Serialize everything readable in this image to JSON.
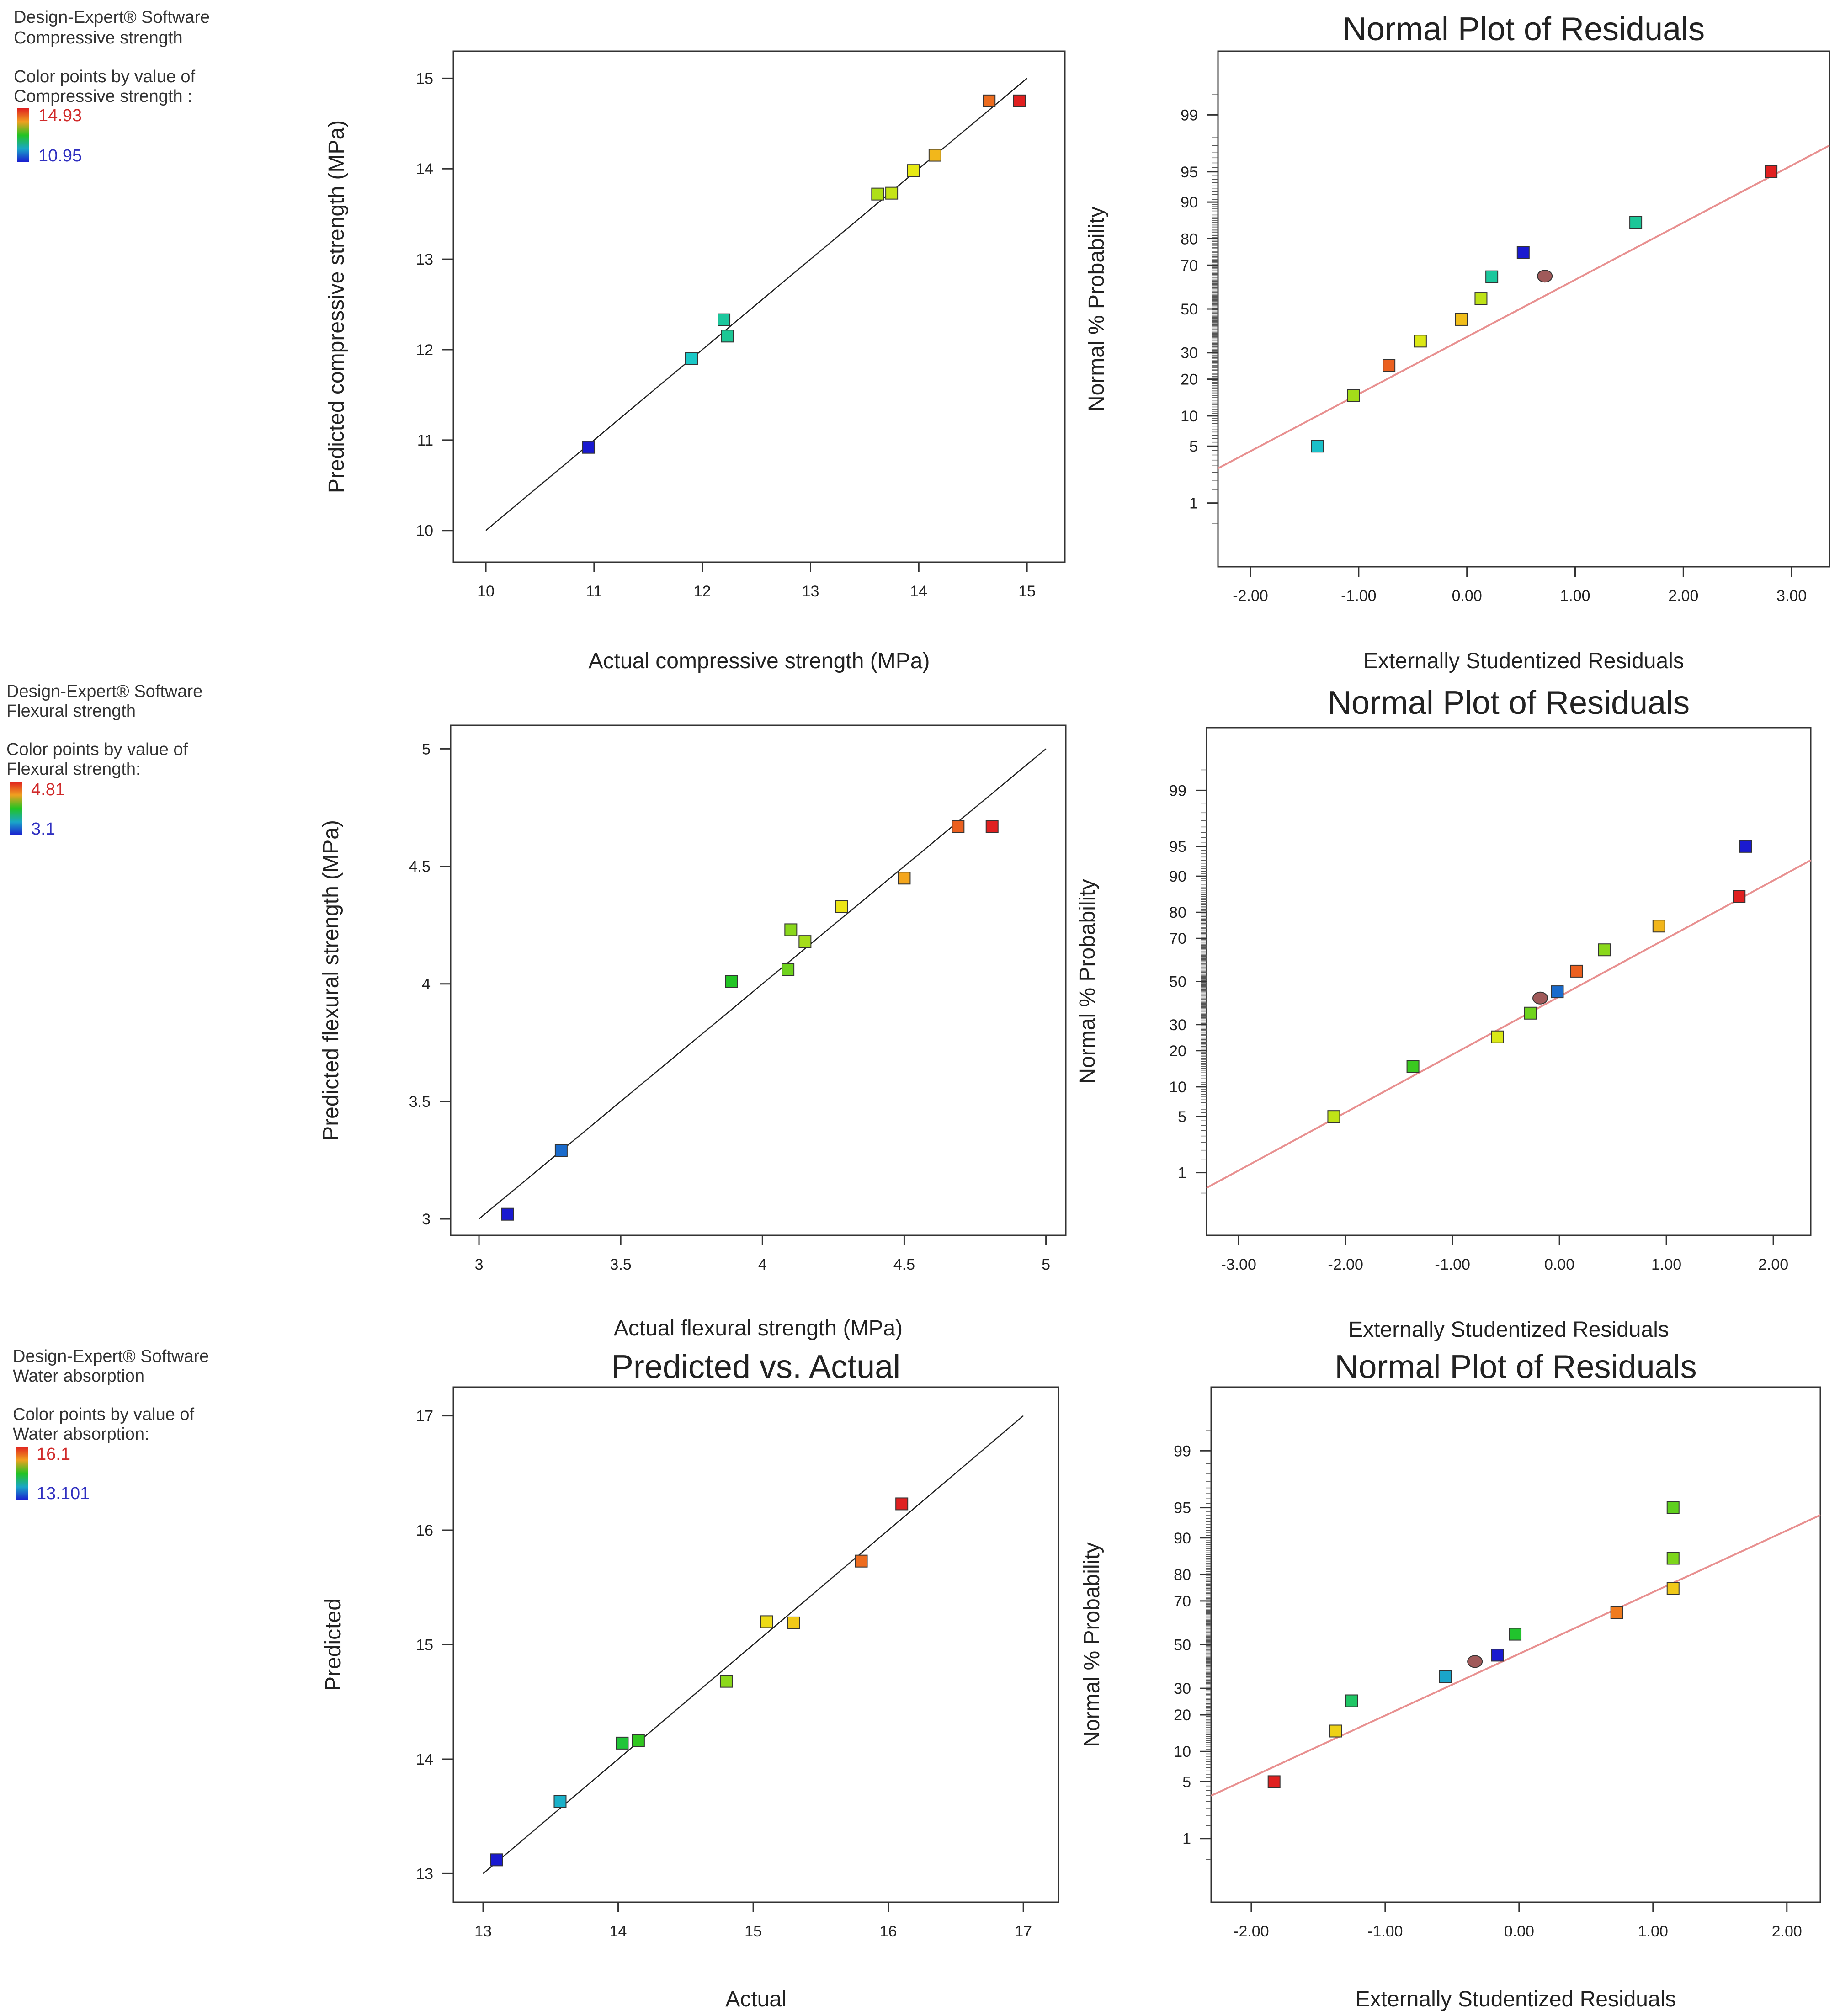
{
  "panels": [
    {
      "legend": {
        "software": "Design-Expert® Software",
        "response": "Compressive strength",
        "color_line1": "Color points by value of",
        "color_line2": "Compressive strength :",
        "high": "14.93",
        "low": "10.95"
      }
    },
    {
      "legend": {
        "software": "Design-Expert® Software",
        "response": "Flexural strength",
        "color_line1": "Color points by value of",
        "color_line2": "Flexural strength:",
        "high": "4.81",
        "low": "3.1"
      }
    },
    {
      "legend": {
        "software": "Design-Expert® Software",
        "response": "Water absorption",
        "color_line1": "Color points by value of",
        "color_line2": "Water absorption:",
        "high": "16.1",
        "low": "13.101"
      }
    }
  ],
  "chart_data": [
    {
      "id": "pva-compressive",
      "type": "scatter",
      "title": "",
      "xlabel": "Actual compressive strength (MPa)",
      "ylabel": "Predicted compressive strength (MPa)",
      "xlim": [
        9.7,
        15.35
      ],
      "ylim": [
        9.65,
        15.3
      ],
      "xticks": [
        10,
        11,
        12,
        13,
        14,
        15
      ],
      "xtick_labels": [
        "10",
        "11",
        "12",
        "13",
        "14",
        "15"
      ],
      "yticks": [
        10,
        11,
        12,
        13,
        14,
        15
      ],
      "ytick_labels": [
        "10",
        "11",
        "12",
        "13",
        "14",
        "15"
      ],
      "reference_line": [
        [
          10,
          10
        ],
        [
          15,
          15
        ]
      ],
      "color_range": [
        10.95,
        14.93
      ],
      "points": [
        {
          "x": 10.95,
          "y": 10.92,
          "c": 10.95
        },
        {
          "x": 11.9,
          "y": 11.9,
          "c": 11.95
        },
        {
          "x": 12.2,
          "y": 12.33,
          "c": 12.2
        },
        {
          "x": 12.23,
          "y": 12.15,
          "c": 12.25
        },
        {
          "x": 13.62,
          "y": 13.72,
          "c": 13.55
        },
        {
          "x": 13.75,
          "y": 13.73,
          "c": 13.65
        },
        {
          "x": 13.95,
          "y": 13.98,
          "c": 13.8
        },
        {
          "x": 14.15,
          "y": 14.15,
          "c": 14.2
        },
        {
          "x": 14.65,
          "y": 14.75,
          "c": 14.6
        },
        {
          "x": 14.93,
          "y": 14.75,
          "c": 14.93
        }
      ]
    },
    {
      "id": "npp-compressive",
      "type": "scatter",
      "title": "Normal Plot of Residuals",
      "xlabel": "Externally Studentized Residuals",
      "ylabel": "Normal % Probability",
      "xlim": [
        -2.3,
        3.35
      ],
      "ylim": [
        0.1,
        99.9
      ],
      "xticks": [
        -2,
        -1,
        0,
        1,
        2,
        3
      ],
      "xtick_labels": [
        "-2.00",
        "-1.00",
        "0.00",
        "1.00",
        "2.00",
        "3.00"
      ],
      "yticks": [
        1,
        5,
        10,
        20,
        30,
        50,
        70,
        80,
        90,
        95,
        99
      ],
      "ytick_labels": [
        "1",
        "5",
        "10",
        "20",
        "30",
        "50",
        "70",
        "80",
        "90",
        "95",
        "99"
      ],
      "reference_line": [
        [
          -2.3,
          2.8
        ],
        [
          3.35,
          97.5
        ]
      ],
      "color_range": [
        10.95,
        14.93
      ],
      "points": [
        {
          "x": -1.38,
          "y": 5,
          "c": 11.9
        },
        {
          "x": -1.05,
          "y": 15,
          "c": 13.5
        },
        {
          "x": -0.72,
          "y": 25,
          "c": 14.65
        },
        {
          "x": -0.43,
          "y": 35,
          "c": 13.75
        },
        {
          "x": -0.05,
          "y": 45,
          "c": 14.15
        },
        {
          "x": 0.13,
          "y": 55,
          "c": 13.62
        },
        {
          "x": 0.23,
          "y": 65,
          "c": 12.2
        },
        {
          "x": 0.52,
          "y": 75,
          "c": 10.95
        },
        {
          "x": 0.72,
          "y": 65.3,
          "c": 0,
          "center": true
        },
        {
          "x": 1.56,
          "y": 85,
          "c": 12.23
        },
        {
          "x": 2.81,
          "y": 95,
          "c": 14.93
        }
      ]
    },
    {
      "id": "pva-flexural",
      "type": "scatter",
      "title": "",
      "xlabel": "Actual flexural strength (MPa)",
      "ylabel": "Predicted flexural strength (MPa)",
      "xlim": [
        2.9,
        5.07
      ],
      "ylim": [
        2.93,
        5.1
      ],
      "xticks": [
        3,
        3.5,
        4,
        4.5,
        5
      ],
      "xtick_labels": [
        "3",
        "3.5",
        "4",
        "4.5",
        "5"
      ],
      "yticks": [
        3,
        3.5,
        4,
        4.5,
        5
      ],
      "ytick_labels": [
        "3",
        "3.5",
        "4",
        "4.5",
        "5"
      ],
      "reference_line": [
        [
          3,
          3
        ],
        [
          5,
          5
        ]
      ],
      "color_range": [
        3.1,
        4.81
      ],
      "points": [
        {
          "x": 3.1,
          "y": 3.02,
          "c": 3.1
        },
        {
          "x": 3.29,
          "y": 3.29,
          "c": 3.3
        },
        {
          "x": 3.89,
          "y": 4.01,
          "c": 3.95
        },
        {
          "x": 4.09,
          "y": 4.06,
          "c": 4.1
        },
        {
          "x": 4.1,
          "y": 4.23,
          "c": 4.15
        },
        {
          "x": 4.15,
          "y": 4.18,
          "c": 4.2
        },
        {
          "x": 4.28,
          "y": 4.33,
          "c": 4.35
        },
        {
          "x": 4.5,
          "y": 4.45,
          "c": 4.55
        },
        {
          "x": 4.69,
          "y": 4.67,
          "c": 4.69
        },
        {
          "x": 4.81,
          "y": 4.67,
          "c": 4.81
        }
      ]
    },
    {
      "id": "npp-flexural",
      "type": "scatter",
      "title": "Normal Plot of Residuals",
      "xlabel": "Externally Studentized Residuals",
      "ylabel": "Normal % Probability",
      "xlim": [
        -3.3,
        2.35
      ],
      "ylim": [
        0.1,
        99.9
      ],
      "xticks": [
        -3,
        -2,
        -1,
        0,
        1,
        2
      ],
      "xtick_labels": [
        "-3.00",
        "-2.00",
        "-1.00",
        "0.00",
        "1.00",
        "2.00"
      ],
      "yticks": [
        1,
        5,
        10,
        20,
        30,
        50,
        70,
        80,
        90,
        95,
        99
      ],
      "ytick_labels": [
        "1",
        "5",
        "10",
        "20",
        "30",
        "50",
        "70",
        "80",
        "90",
        "95",
        "99"
      ],
      "reference_line": [
        [
          -3.3,
          0.6
        ],
        [
          2.35,
          93
        ]
      ],
      "color_range": [
        3.1,
        4.81
      ],
      "points": [
        {
          "x": -2.11,
          "y": 5,
          "c": 4.25
        },
        {
          "x": -1.37,
          "y": 15,
          "c": 4.0
        },
        {
          "x": -0.58,
          "y": 25,
          "c": 4.3
        },
        {
          "x": -0.27,
          "y": 35,
          "c": 4.1
        },
        {
          "x": -0.18,
          "y": 42,
          "c": 0,
          "center": true
        },
        {
          "x": -0.02,
          "y": 45,
          "c": 3.3
        },
        {
          "x": 0.16,
          "y": 55,
          "c": 4.69
        },
        {
          "x": 0.42,
          "y": 65,
          "c": 4.15
        },
        {
          "x": 0.93,
          "y": 75,
          "c": 4.5
        },
        {
          "x": 1.68,
          "y": 85,
          "c": 4.81
        },
        {
          "x": 1.74,
          "y": 95,
          "c": 3.1
        }
      ]
    },
    {
      "id": "pva-water",
      "type": "scatter",
      "title": "Predicted vs. Actual",
      "xlabel": "Actual",
      "ylabel": "Predicted",
      "xlim": [
        12.78,
        17.26
      ],
      "ylim": [
        12.75,
        17.25
      ],
      "xticks": [
        13,
        14,
        15,
        16,
        17
      ],
      "xtick_labels": [
        "13",
        "14",
        "15",
        "16",
        "17"
      ],
      "yticks": [
        13,
        14,
        15,
        16,
        17
      ],
      "ytick_labels": [
        "13",
        "14",
        "15",
        "16",
        "17"
      ],
      "reference_line": [
        [
          13,
          13
        ],
        [
          17,
          17
        ]
      ],
      "color_range": [
        13.101,
        16.1
      ],
      "points": [
        {
          "x": 13.1,
          "y": 13.12,
          "c": 13.101
        },
        {
          "x": 13.57,
          "y": 13.63,
          "c": 13.75
        },
        {
          "x": 14.03,
          "y": 14.14,
          "c": 14.5
        },
        {
          "x": 14.15,
          "y": 14.16,
          "c": 14.65
        },
        {
          "x": 14.8,
          "y": 14.68,
          "c": 14.95
        },
        {
          "x": 15.1,
          "y": 15.2,
          "c": 15.35
        },
        {
          "x": 15.3,
          "y": 15.19,
          "c": 15.45
        },
        {
          "x": 15.8,
          "y": 15.73,
          "c": 15.85
        },
        {
          "x": 16.1,
          "y": 16.23,
          "c": 16.1
        }
      ]
    },
    {
      "id": "npp-water",
      "type": "scatter",
      "title": "Normal Plot of Residuals",
      "xlabel": "Externally Studentized Residuals",
      "ylabel": "Normal % Probability",
      "xlim": [
        -2.3,
        2.25
      ],
      "ylim": [
        0.1,
        99.9
      ],
      "xticks": [
        -2,
        -1,
        0,
        1,
        2
      ],
      "xtick_labels": [
        "-2.00",
        "-1.00",
        "0.00",
        "1.00",
        "2.00"
      ],
      "yticks": [
        1,
        5,
        10,
        20,
        30,
        50,
        70,
        80,
        90,
        95,
        99
      ],
      "ytick_labels": [
        "1",
        "5",
        "10",
        "20",
        "30",
        "50",
        "70",
        "80",
        "90",
        "95",
        "99"
      ],
      "reference_line": [
        [
          -2.3,
          3.5
        ],
        [
          2.25,
          94
        ]
      ],
      "color_range": [
        13.101,
        16.1
      ],
      "points": [
        {
          "x": -1.83,
          "y": 5,
          "c": 16.1
        },
        {
          "x": -1.37,
          "y": 15,
          "c": 15.4
        },
        {
          "x": -1.25,
          "y": 25,
          "c": 14.3
        },
        {
          "x": -0.55,
          "y": 35,
          "c": 13.7
        },
        {
          "x": -0.33,
          "y": 42,
          "c": 0,
          "center": true
        },
        {
          "x": -0.16,
          "y": 45,
          "c": 13.101
        },
        {
          "x": -0.03,
          "y": 55,
          "c": 14.55
        },
        {
          "x": 0.73,
          "y": 65,
          "c": 15.8
        },
        {
          "x": 1.15,
          "y": 75,
          "c": 15.45
        },
        {
          "x": 1.15,
          "y": 85,
          "c": 14.9
        },
        {
          "x": 1.15,
          "y": 95,
          "c": 14.8
        }
      ]
    }
  ]
}
